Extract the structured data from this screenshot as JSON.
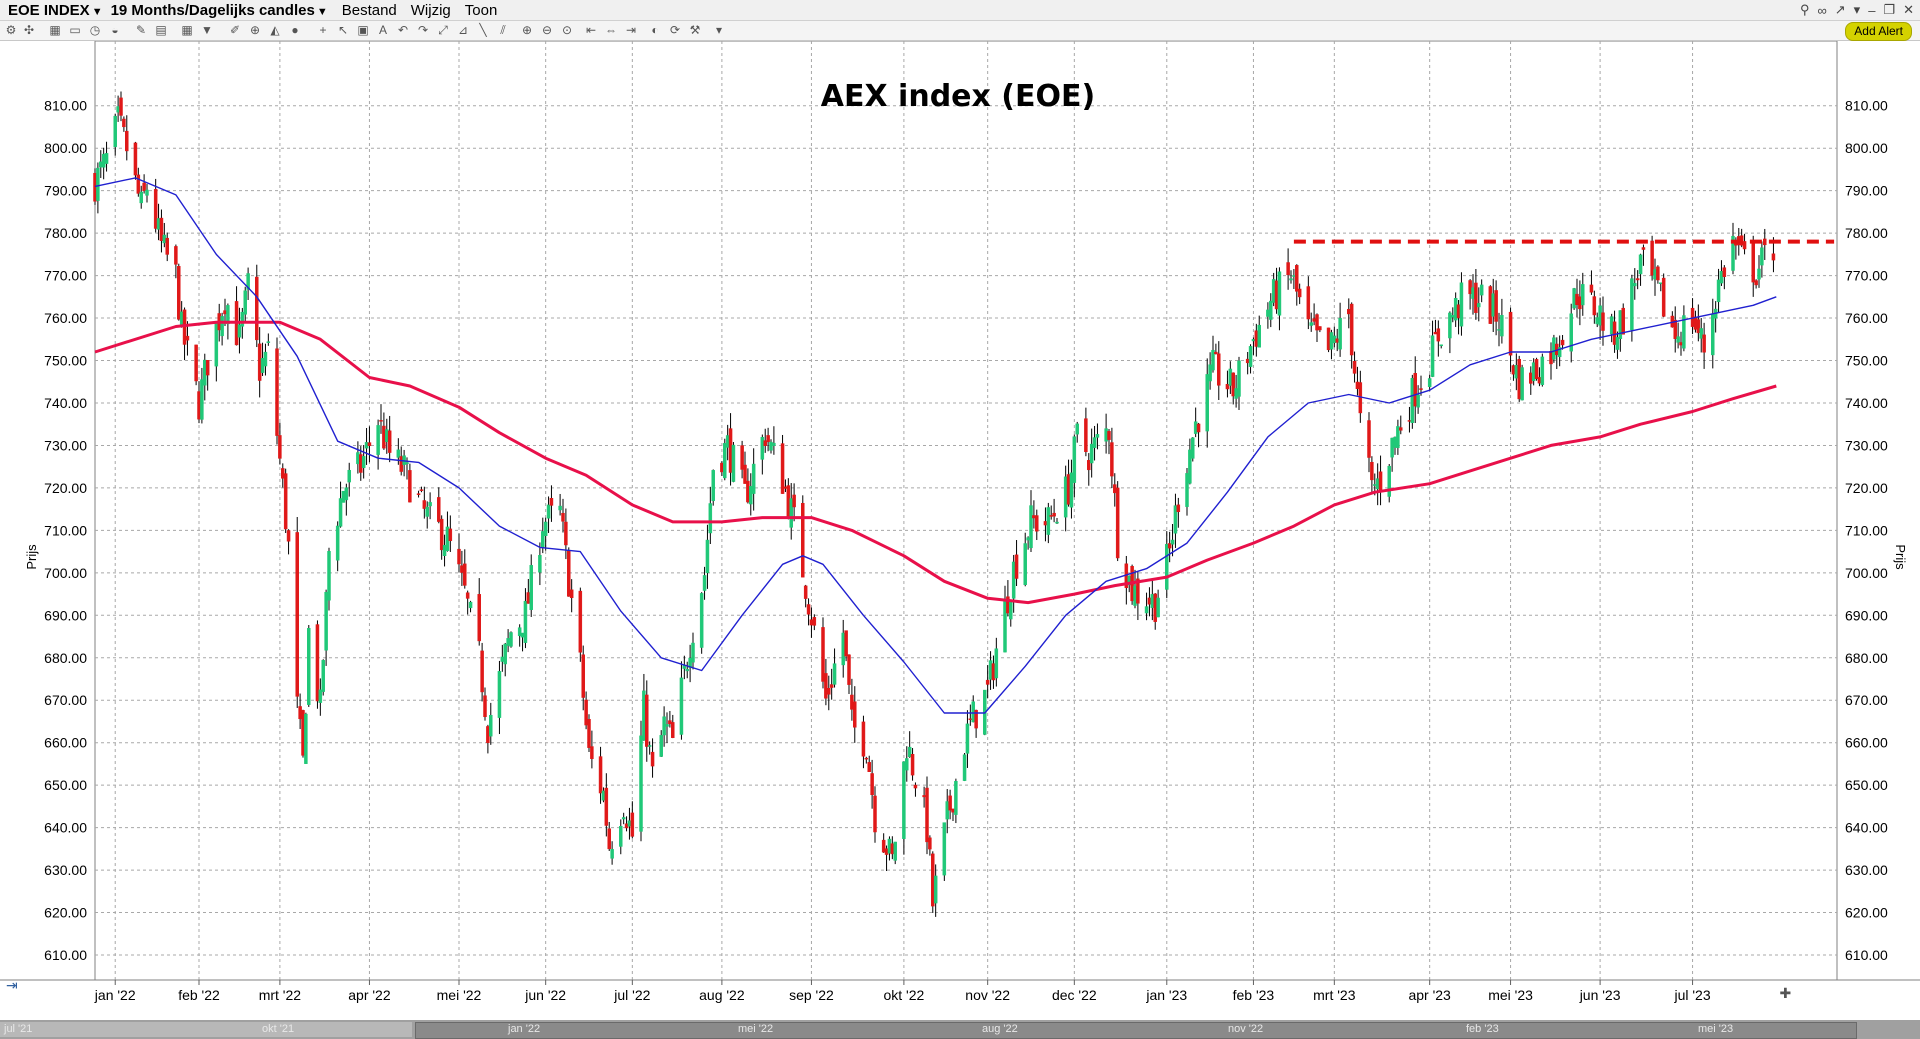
{
  "window": {
    "symbol_label": "EOE INDEX",
    "period_label": "19 Months/Dagelijks candles",
    "menu": [
      "Bestand",
      "Wijzig",
      "Toon"
    ],
    "add_alert": "Add Alert"
  },
  "colors": {
    "up": "#20c878",
    "down": "#e01818",
    "ma_short": "#2020d0",
    "ma_long": "#e8104a",
    "resistance": "#e01010",
    "grid": "#a8a8a8"
  },
  "navigator": {
    "labels": [
      "jul '21",
      "okt '21",
      "jan '22",
      "mei '22",
      "aug '22",
      "nov '22",
      "feb '23",
      "mei '23"
    ]
  },
  "chart_data": {
    "type": "candlestick",
    "title": "AEX index (EOE)",
    "ylabel": "Prijs",
    "ylim": [
      606,
      817
    ],
    "y_ticks": [
      610,
      620,
      630,
      640,
      650,
      660,
      670,
      680,
      690,
      700,
      710,
      720,
      730,
      740,
      750,
      760,
      770,
      780,
      790,
      800,
      810
    ],
    "y_tick_labels": [
      "610.00",
      "620.00",
      "630.00",
      "640.00",
      "650.00",
      "660.00",
      "670.00",
      "680.00",
      "690.00",
      "700.00",
      "710.00",
      "720.00",
      "730.00",
      "740.00",
      "750.00",
      "760.00",
      "770.00",
      "780.00",
      "790.00",
      "800.00",
      "810.00"
    ],
    "x_range": [
      "2021-12-27",
      "2023-08-22"
    ],
    "months": [
      {
        "label": "jan '22",
        "date": "2022-01-03"
      },
      {
        "label": "feb '22",
        "date": "2022-02-01"
      },
      {
        "label": "mrt '22",
        "date": "2022-03-01"
      },
      {
        "label": "apr '22",
        "date": "2022-04-01"
      },
      {
        "label": "mei '22",
        "date": "2022-05-02"
      },
      {
        "label": "jun '22",
        "date": "2022-06-01"
      },
      {
        "label": "jul '22",
        "date": "2022-07-01"
      },
      {
        "label": "aug '22",
        "date": "2022-08-01"
      },
      {
        "label": "sep '22",
        "date": "2022-09-01"
      },
      {
        "label": "okt '22",
        "date": "2022-10-03"
      },
      {
        "label": "nov '22",
        "date": "2022-11-01"
      },
      {
        "label": "dec '22",
        "date": "2022-12-01"
      },
      {
        "label": "jan '23",
        "date": "2023-01-02"
      },
      {
        "label": "feb '23",
        "date": "2023-02-01"
      },
      {
        "label": "mrt '23",
        "date": "2023-03-01"
      },
      {
        "label": "apr '23",
        "date": "2023-04-03"
      },
      {
        "label": "mei '23",
        "date": "2023-05-01"
      },
      {
        "label": "jun '23",
        "date": "2023-06-01"
      },
      {
        "label": "jul '23",
        "date": "2023-07-03"
      }
    ],
    "close_path": [
      [
        "2021-12-27",
        792
      ],
      [
        "2021-12-31",
        797
      ],
      [
        "2022-01-04",
        806
      ],
      [
        "2022-01-07",
        800
      ],
      [
        "2022-01-12",
        786
      ],
      [
        "2022-01-14",
        791
      ],
      [
        "2022-01-19",
        777
      ],
      [
        "2022-01-24",
        770
      ],
      [
        "2022-01-26",
        757
      ],
      [
        "2022-02-01",
        740
      ],
      [
        "2022-02-04",
        750
      ],
      [
        "2022-02-10",
        765
      ],
      [
        "2022-02-15",
        755
      ],
      [
        "2022-02-18",
        767
      ],
      [
        "2022-02-22",
        748
      ],
      [
        "2022-02-25",
        752
      ],
      [
        "2022-03-02",
        720
      ],
      [
        "2022-03-04",
        706
      ],
      [
        "2022-03-07",
        668
      ],
      [
        "2022-03-09",
        655
      ],
      [
        "2022-03-11",
        686
      ],
      [
        "2022-03-15",
        668
      ],
      [
        "2022-03-18",
        705
      ],
      [
        "2022-03-23",
        720
      ],
      [
        "2022-03-29",
        725
      ],
      [
        "2022-04-04",
        736
      ],
      [
        "2022-04-08",
        728
      ],
      [
        "2022-04-13",
        724
      ],
      [
        "2022-04-20",
        714
      ],
      [
        "2022-04-28",
        708
      ],
      [
        "2022-05-04",
        695
      ],
      [
        "2022-05-09",
        680
      ],
      [
        "2022-05-12",
        664
      ],
      [
        "2022-05-16",
        675
      ],
      [
        "2022-05-20",
        686
      ],
      [
        "2022-05-25",
        690
      ],
      [
        "2022-05-31",
        712
      ],
      [
        "2022-06-06",
        714
      ],
      [
        "2022-06-13",
        678
      ],
      [
        "2022-06-16",
        657
      ],
      [
        "2022-06-21",
        648
      ],
      [
        "2022-06-23",
        636
      ],
      [
        "2022-06-28",
        646
      ],
      [
        "2022-07-01",
        638
      ],
      [
        "2022-07-05",
        668
      ],
      [
        "2022-07-08",
        652
      ],
      [
        "2022-07-12",
        664
      ],
      [
        "2022-07-15",
        660
      ],
      [
        "2022-07-21",
        684
      ],
      [
        "2022-07-26",
        700
      ],
      [
        "2022-07-29",
        725
      ],
      [
        "2022-08-03",
        730
      ],
      [
        "2022-08-09",
        718
      ],
      [
        "2022-08-16",
        733
      ],
      [
        "2022-08-22",
        722
      ],
      [
        "2022-08-26",
        712
      ],
      [
        "2022-09-01",
        690
      ],
      [
        "2022-09-06",
        670
      ],
      [
        "2022-09-12",
        686
      ],
      [
        "2022-09-15",
        664
      ],
      [
        "2022-09-20",
        660
      ],
      [
        "2022-09-23",
        643
      ],
      [
        "2022-09-29",
        632
      ],
      [
        "2022-10-04",
        660
      ],
      [
        "2022-10-07",
        652
      ],
      [
        "2022-10-11",
        640
      ],
      [
        "2022-10-13",
        622
      ],
      [
        "2022-10-18",
        642
      ],
      [
        "2022-10-24",
        660
      ],
      [
        "2022-10-27",
        666
      ],
      [
        "2022-11-01",
        672
      ],
      [
        "2022-11-04",
        682
      ],
      [
        "2022-11-10",
        701
      ],
      [
        "2022-11-16",
        712
      ],
      [
        "2022-11-22",
        712
      ],
      [
        "2022-11-29",
        720
      ],
      [
        "2022-12-02",
        732
      ],
      [
        "2022-12-06",
        728
      ],
      [
        "2022-12-13",
        734
      ],
      [
        "2022-12-16",
        708
      ],
      [
        "2022-12-21",
        696
      ],
      [
        "2022-12-29",
        693
      ],
      [
        "2023-01-03",
        705
      ],
      [
        "2023-01-06",
        718
      ],
      [
        "2023-01-12",
        735
      ],
      [
        "2023-01-18",
        748
      ],
      [
        "2023-01-25",
        743
      ],
      [
        "2023-02-01",
        755
      ],
      [
        "2023-02-07",
        764
      ],
      [
        "2023-02-14",
        770
      ],
      [
        "2023-02-20",
        757
      ],
      [
        "2023-02-27",
        752
      ],
      [
        "2023-03-06",
        761
      ],
      [
        "2023-03-10",
        735
      ],
      [
        "2023-03-14",
        720
      ],
      [
        "2023-03-17",
        722
      ],
      [
        "2023-03-22",
        732
      ],
      [
        "2023-03-28",
        742
      ],
      [
        "2023-04-03",
        750
      ],
      [
        "2023-04-06",
        756
      ],
      [
        "2023-04-14",
        764
      ],
      [
        "2023-04-20",
        765
      ],
      [
        "2023-04-27",
        760
      ],
      [
        "2023-05-04",
        745
      ],
      [
        "2023-05-10",
        748
      ],
      [
        "2023-05-17",
        754
      ],
      [
        "2023-05-24",
        766
      ],
      [
        "2023-05-31",
        762
      ],
      [
        "2023-06-05",
        756
      ],
      [
        "2023-06-09",
        760
      ],
      [
        "2023-06-15",
        773
      ],
      [
        "2023-06-21",
        766
      ],
      [
        "2023-06-27",
        756
      ],
      [
        "2023-07-03",
        760
      ],
      [
        "2023-07-07",
        753
      ],
      [
        "2023-07-12",
        768
      ],
      [
        "2023-07-17",
        778
      ],
      [
        "2023-07-20",
        774
      ],
      [
        "2023-07-25",
        771
      ],
      [
        "2023-07-31",
        777
      ]
    ],
    "ma_short": [
      [
        "2021-12-27",
        791
      ],
      [
        "2022-01-10",
        793
      ],
      [
        "2022-01-24",
        789
      ],
      [
        "2022-02-07",
        775
      ],
      [
        "2022-02-21",
        765
      ],
      [
        "2022-03-07",
        751
      ],
      [
        "2022-03-21",
        731
      ],
      [
        "2022-04-04",
        727
      ],
      [
        "2022-04-18",
        726
      ],
      [
        "2022-05-02",
        720
      ],
      [
        "2022-05-16",
        711
      ],
      [
        "2022-05-30",
        706
      ],
      [
        "2022-06-13",
        705
      ],
      [
        "2022-06-27",
        691
      ],
      [
        "2022-07-11",
        680
      ],
      [
        "2022-07-25",
        677
      ],
      [
        "2022-08-08",
        690
      ],
      [
        "2022-08-22",
        702
      ],
      [
        "2022-08-29",
        704
      ],
      [
        "2022-09-05",
        702
      ],
      [
        "2022-09-19",
        690
      ],
      [
        "2022-10-03",
        679
      ],
      [
        "2022-10-17",
        667
      ],
      [
        "2022-10-31",
        667
      ],
      [
        "2022-11-14",
        678
      ],
      [
        "2022-11-28",
        690
      ],
      [
        "2022-12-12",
        698
      ],
      [
        "2022-12-26",
        701
      ],
      [
        "2023-01-09",
        707
      ],
      [
        "2023-01-23",
        719
      ],
      [
        "2023-02-06",
        732
      ],
      [
        "2023-02-20",
        740
      ],
      [
        "2023-03-06",
        742
      ],
      [
        "2023-03-20",
        740
      ],
      [
        "2023-04-03",
        743
      ],
      [
        "2023-04-17",
        749
      ],
      [
        "2023-05-01",
        752
      ],
      [
        "2023-05-15",
        752
      ],
      [
        "2023-05-29",
        755
      ],
      [
        "2023-06-12",
        757
      ],
      [
        "2023-06-26",
        759
      ],
      [
        "2023-07-10",
        761
      ],
      [
        "2023-07-24",
        763
      ],
      [
        "2023-08-01",
        765
      ]
    ],
    "ma_long": [
      [
        "2021-12-27",
        752
      ],
      [
        "2022-01-24",
        758
      ],
      [
        "2022-02-07",
        759
      ],
      [
        "2022-03-01",
        759
      ],
      [
        "2022-03-15",
        755
      ],
      [
        "2022-04-01",
        746
      ],
      [
        "2022-04-15",
        744
      ],
      [
        "2022-05-02",
        739
      ],
      [
        "2022-05-16",
        733
      ],
      [
        "2022-06-01",
        727
      ],
      [
        "2022-06-15",
        723
      ],
      [
        "2022-07-01",
        716
      ],
      [
        "2022-07-15",
        712
      ],
      [
        "2022-08-01",
        712
      ],
      [
        "2022-08-15",
        713
      ],
      [
        "2022-09-01",
        713
      ],
      [
        "2022-09-15",
        710
      ],
      [
        "2022-10-03",
        704
      ],
      [
        "2022-10-17",
        698
      ],
      [
        "2022-11-01",
        694
      ],
      [
        "2022-11-15",
        693
      ],
      [
        "2022-12-01",
        695
      ],
      [
        "2022-12-15",
        697
      ],
      [
        "2023-01-02",
        699
      ],
      [
        "2023-01-16",
        703
      ],
      [
        "2023-02-01",
        707
      ],
      [
        "2023-02-15",
        711
      ],
      [
        "2023-03-01",
        716
      ],
      [
        "2023-03-15",
        719
      ],
      [
        "2023-04-03",
        721
      ],
      [
        "2023-04-17",
        724
      ],
      [
        "2023-05-01",
        727
      ],
      [
        "2023-05-15",
        730
      ],
      [
        "2023-06-01",
        732
      ],
      [
        "2023-06-15",
        735
      ],
      [
        "2023-07-03",
        738
      ],
      [
        "2023-07-17",
        741
      ],
      [
        "2023-08-01",
        744
      ]
    ],
    "resistance": {
      "y": 778,
      "from": "2023-02-15",
      "to": "2023-08-21"
    }
  }
}
